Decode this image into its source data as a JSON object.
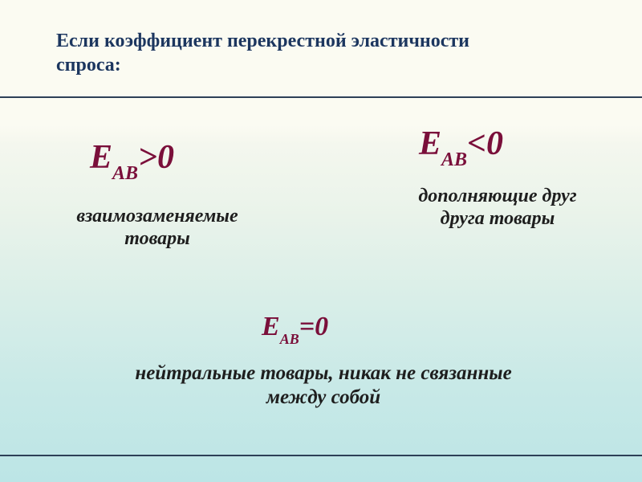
{
  "slide": {
    "title": "Если коэффициент перекрестной эластичности спроса:",
    "title_color": "#1c365f",
    "title_fontsize": 24,
    "background_gradient": [
      "#fbfbf2",
      "#bce5e6"
    ],
    "divider_color": "#2d4057"
  },
  "formulas": {
    "left": {
      "letter": "E",
      "sub": "AB",
      "rel": ">0"
    },
    "right": {
      "letter": "E",
      "sub": "AB",
      "rel": "<0"
    },
    "mid": {
      "letter": "E",
      "sub": "AB",
      "rel": "=0"
    },
    "color": "#7a0f3a",
    "fontsize_main": 42,
    "fontsize_sub": 24
  },
  "descriptions": {
    "left": "взаимозаменяемые товары",
    "right": "дополняющие друг друга товары",
    "mid": "нейтральные товары, никак не связанные между собой",
    "color": "#1e1e1e",
    "fontsize": 24
  }
}
